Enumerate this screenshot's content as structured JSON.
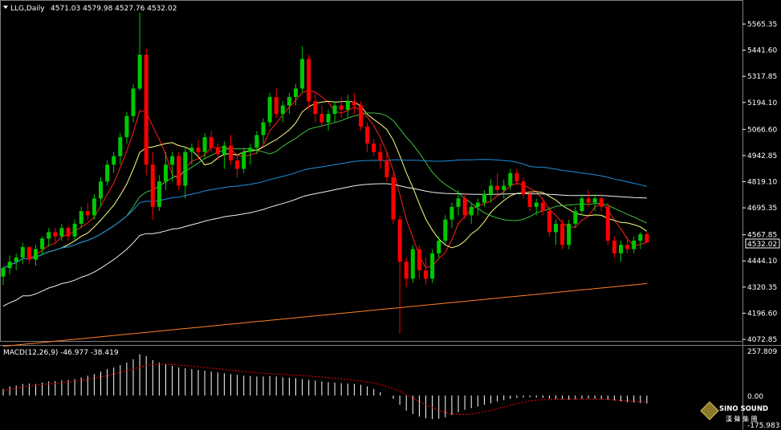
{
  "header": {
    "symbol": "LLG,Daily",
    "ohlc": "4571.03 4579.98 4527.76 4532.02"
  },
  "price_axis": {
    "ticks": [
      "5565.35",
      "5441.60",
      "5317.85",
      "5194.10",
      "5066.60",
      "4942.85",
      "4819.10",
      "4695.35",
      "4567.85",
      "4444.10",
      "4320.35",
      "4196.60",
      "4072.85"
    ],
    "current_price_label": "4532.02"
  },
  "macd": {
    "label": "MACD(12,26,9) -46.977 -38.419",
    "ticks": [
      "257.809",
      "0.00",
      "-175.983"
    ]
  },
  "watermark": {
    "brand": "SINO SOUND",
    "brand_cn": "漢 聲 集 團"
  },
  "colors": {
    "bull": "#00c800",
    "bear": "#ff0000",
    "ma_fast": "#ff2020",
    "ma_yellow": "#ffff80",
    "ma_green": "#40c040",
    "ma_blue": "#2090e0",
    "ma_white": "#f0f0f0",
    "ma_orange": "#ff7f27",
    "macd_hist": "#ffffff",
    "macd_signal": "#ff0000"
  },
  "chart_data": {
    "type": "candlestick",
    "price_range": [
      4072.85,
      5565.35
    ],
    "bars": [
      [
        4370,
        4420,
        4330,
        4410
      ],
      [
        4410,
        4470,
        4380,
        4440
      ],
      [
        4440,
        4480,
        4400,
        4460
      ],
      [
        4460,
        4530,
        4430,
        4510
      ],
      [
        4510,
        4490,
        4430,
        4450
      ],
      [
        4450,
        4520,
        4420,
        4500
      ],
      [
        4500,
        4560,
        4470,
        4550
      ],
      [
        4550,
        4600,
        4510,
        4580
      ],
      [
        4580,
        4600,
        4530,
        4560
      ],
      [
        4560,
        4620,
        4540,
        4600
      ],
      [
        4600,
        4610,
        4540,
        4560
      ],
      [
        4560,
        4640,
        4540,
        4620
      ],
      [
        4620,
        4700,
        4600,
        4680
      ],
      [
        4680,
        4720,
        4640,
        4660
      ],
      [
        4660,
        4760,
        4640,
        4740
      ],
      [
        4740,
        4840,
        4700,
        4820
      ],
      [
        4820,
        4920,
        4800,
        4900
      ],
      [
        4900,
        4960,
        4860,
        4940
      ],
      [
        4940,
        5050,
        4900,
        5030
      ],
      [
        5030,
        5150,
        5000,
        5130
      ],
      [
        5130,
        5280,
        5100,
        5260
      ],
      [
        5260,
        5620,
        5250,
        5420
      ],
      [
        5420,
        5450,
        4850,
        4900
      ],
      [
        4900,
        4960,
        4640,
        4700
      ],
      [
        4700,
        4850,
        4680,
        4820
      ],
      [
        4820,
        4960,
        4780,
        4900
      ],
      [
        4900,
        4960,
        4820,
        4940
      ],
      [
        4940,
        4960,
        4780,
        4800
      ],
      [
        4800,
        4980,
        4740,
        4960
      ],
      [
        4960,
        5000,
        4900,
        4980
      ],
      [
        4980,
        5020,
        4940,
        4960
      ],
      [
        4960,
        5050,
        4930,
        5030
      ],
      [
        5030,
        5060,
        4960,
        4980
      ],
      [
        4980,
        5000,
        4920,
        4950
      ],
      [
        4950,
        5010,
        4880,
        4990
      ],
      [
        4990,
        5040,
        4900,
        4920
      ],
      [
        4920,
        4950,
        4840,
        4880
      ],
      [
        4880,
        4980,
        4860,
        4960
      ],
      [
        4960,
        5000,
        4900,
        4980
      ],
      [
        4980,
        5060,
        4950,
        5040
      ],
      [
        5040,
        5120,
        5000,
        5100
      ],
      [
        5100,
        5240,
        5080,
        5220
      ],
      [
        5220,
        5260,
        5120,
        5140
      ],
      [
        5140,
        5200,
        5100,
        5180
      ],
      [
        5180,
        5240,
        5140,
        5220
      ],
      [
        5220,
        5280,
        5180,
        5260
      ],
      [
        5260,
        5460,
        5240,
        5400
      ],
      [
        5400,
        5420,
        5160,
        5200
      ],
      [
        5200,
        5240,
        5100,
        5140
      ],
      [
        5140,
        5180,
        5080,
        5100
      ],
      [
        5100,
        5160,
        5060,
        5140
      ],
      [
        5140,
        5200,
        5100,
        5180
      ],
      [
        5180,
        5220,
        5120,
        5160
      ],
      [
        5160,
        5230,
        5120,
        5200
      ],
      [
        5200,
        5240,
        5140,
        5180
      ],
      [
        5180,
        5200,
        5060,
        5080
      ],
      [
        5080,
        5100,
        4960,
        5000
      ],
      [
        5000,
        5020,
        4940,
        4960
      ],
      [
        4960,
        5000,
        4880,
        4920
      ],
      [
        4920,
        4960,
        4820,
        4840
      ],
      [
        4840,
        4860,
        4620,
        4640
      ],
      [
        4640,
        4660,
        4100,
        4440
      ],
      [
        4440,
        4460,
        4320,
        4360
      ],
      [
        4360,
        4520,
        4340,
        4500
      ],
      [
        4500,
        4520,
        4360,
        4400
      ],
      [
        4400,
        4460,
        4330,
        4360
      ],
      [
        4360,
        4500,
        4340,
        4480
      ],
      [
        4480,
        4560,
        4460,
        4540
      ],
      [
        4540,
        4660,
        4520,
        4640
      ],
      [
        4640,
        4720,
        4600,
        4700
      ],
      [
        4700,
        4780,
        4660,
        4740
      ],
      [
        4740,
        4760,
        4640,
        4660
      ],
      [
        4660,
        4720,
        4620,
        4700
      ],
      [
        4700,
        4740,
        4660,
        4720
      ],
      [
        4720,
        4780,
        4700,
        4760
      ],
      [
        4760,
        4830,
        4720,
        4800
      ],
      [
        4800,
        4860,
        4760,
        4780
      ],
      [
        4780,
        4830,
        4740,
        4800
      ],
      [
        4800,
        4880,
        4780,
        4860
      ],
      [
        4860,
        4880,
        4800,
        4820
      ],
      [
        4820,
        4840,
        4740,
        4760
      ],
      [
        4760,
        4780,
        4680,
        4700
      ],
      [
        4700,
        4740,
        4660,
        4720
      ],
      [
        4720,
        4740,
        4660,
        4680
      ],
      [
        4680,
        4700,
        4560,
        4580
      ],
      [
        4580,
        4640,
        4520,
        4620
      ],
      [
        4620,
        4640,
        4500,
        4520
      ],
      [
        4520,
        4640,
        4500,
        4620
      ],
      [
        4620,
        4700,
        4600,
        4680
      ],
      [
        4680,
        4760,
        4660,
        4740
      ],
      [
        4740,
        4780,
        4700,
        4720
      ],
      [
        4720,
        4760,
        4680,
        4740
      ],
      [
        4740,
        4760,
        4680,
        4700
      ],
      [
        4700,
        4720,
        4520,
        4540
      ],
      [
        4540,
        4560,
        4460,
        4480
      ],
      [
        4480,
        4540,
        4440,
        4520
      ],
      [
        4520,
        4560,
        4480,
        4500
      ],
      [
        4500,
        4560,
        4480,
        4540
      ],
      [
        4540,
        4580,
        4500,
        4571
      ],
      [
        4571,
        4580,
        4528,
        4532
      ]
    ],
    "macd_hist": [
      40,
      55,
      60,
      70,
      72,
      70,
      78,
      85,
      88,
      92,
      95,
      100,
      110,
      120,
      130,
      145,
      160,
      170,
      185,
      200,
      220,
      250,
      240,
      215,
      200,
      190,
      180,
      170,
      165,
      160,
      155,
      150,
      145,
      140,
      135,
      130,
      125,
      120,
      118,
      115,
      115,
      118,
      115,
      110,
      108,
      105,
      100,
      95,
      90,
      85,
      80,
      78,
      75,
      72,
      70,
      65,
      55,
      40,
      20,
      0,
      -20,
      -55,
      -90,
      -110,
      -125,
      -135,
      -140,
      -138,
      -130,
      -115,
      -100,
      -85,
      -75,
      -65,
      -55,
      -45,
      -35,
      -28,
      -20,
      -15,
      -12,
      -10,
      -12,
      -15,
      -18,
      -20,
      -22,
      -25,
      -22,
      -20,
      -18,
      -20,
      -22,
      -25,
      -30,
      -35,
      -40,
      -42,
      -45,
      -47
    ],
    "macd_signal": [
      30,
      38,
      45,
      52,
      58,
      62,
      66,
      70,
      74,
      78,
      82,
      86,
      92,
      98,
      104,
      112,
      120,
      130,
      140,
      150,
      160,
      172,
      182,
      188,
      190,
      190,
      188,
      185,
      182,
      178,
      174,
      170,
      166,
      162,
      158,
      154,
      150,
      146,
      142,
      138,
      135,
      132,
      130,
      128,
      126,
      124,
      121,
      118,
      115,
      112,
      108,
      105,
      101,
      97,
      93,
      88,
      82,
      75,
      66,
      55,
      42,
      25,
      5,
      -15,
      -35,
      -55,
      -72,
      -88,
      -100,
      -108,
      -112,
      -112,
      -110,
      -104,
      -96,
      -88,
      -78,
      -68,
      -58,
      -48,
      -40,
      -33,
      -28,
      -25,
      -23,
      -22,
      -22,
      -23,
      -23,
      -22,
      -22,
      -22,
      -23,
      -24,
      -26,
      -29,
      -32,
      -35,
      -37,
      -38
    ]
  }
}
